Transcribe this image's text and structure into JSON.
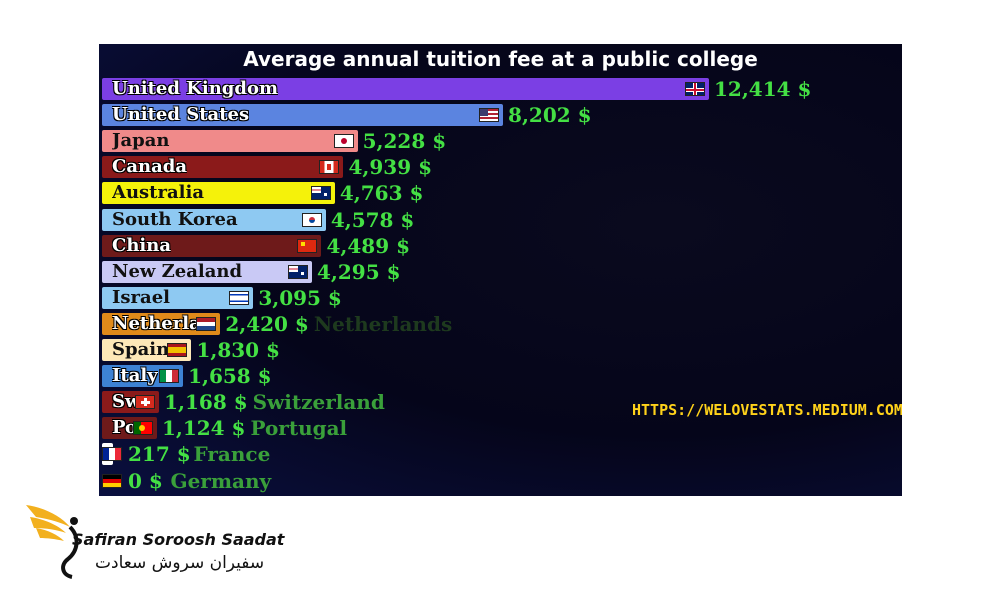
{
  "chart_data": {
    "type": "bar",
    "orientation": "horizontal",
    "title": "Average annual tuition fee at a public college",
    "unit": "$",
    "xlim": [
      0,
      12414
    ],
    "categories": [
      "United Kingdom",
      "United States",
      "Japan",
      "Canada",
      "Australia",
      "South Korea",
      "China",
      "New Zealand",
      "Israel",
      "Netherlands",
      "Spain",
      "Italy",
      "Switzerland",
      "Portugal",
      "France",
      "Germany"
    ],
    "bar_labels": [
      "United Kingdom",
      "United States",
      "Japan",
      "Canada",
      "Australia",
      "South Korea",
      "China",
      "New Zealand",
      "Israel",
      "Netherlan",
      "Spain",
      "Italy",
      "Sw",
      "Po",
      "",
      ""
    ],
    "values": [
      12414,
      8202,
      5228,
      4939,
      4763,
      4578,
      4489,
      4295,
      3095,
      2420,
      1830,
      1658,
      1168,
      1124,
      217,
      0
    ],
    "value_labels": [
      "12,414 $",
      "8,202 $",
      "5,228 $",
      "4,939 $",
      "4,763 $",
      "4,578 $",
      "4,489 $",
      "4,295 $",
      "3,095 $",
      "2,420 $",
      "1,830 $",
      "1,658 $",
      "1,168 $",
      "1,124 $",
      "217 $",
      "0 $"
    ],
    "outside_labels": [
      "",
      "",
      "",
      "",
      "",
      "",
      "",
      "",
      "",
      "Netherlands",
      "",
      "",
      "Switzerland",
      "Portugal",
      "France",
      "Germany"
    ],
    "bar_colors": [
      "#7b3fe4",
      "#5b84e0",
      "#f08a8a",
      "#8b1a1a",
      "#f5f20a",
      "#8ec9f2",
      "#6e1a1a",
      "#c9c9f5",
      "#8ec9f2",
      "#e08a1a",
      "#fde8b8",
      "#3d82d4",
      "#8b1a1a",
      "#6e1a1a",
      "#ffffff",
      "#ffffff"
    ],
    "flags": [
      "uk",
      "us",
      "japan",
      "canada",
      "australia",
      "south-korea",
      "china",
      "new-zealand",
      "israel",
      "netherlands",
      "spain",
      "italy",
      "switzerland",
      "portugal",
      "france",
      "germany"
    ]
  },
  "watermark": "HTTPS://WELOVESTATS.MEDIUM.COM/",
  "logo": {
    "name_en": "Safiran Soroosh Saadat",
    "name_fa": "سفیران سروش سعادت"
  }
}
